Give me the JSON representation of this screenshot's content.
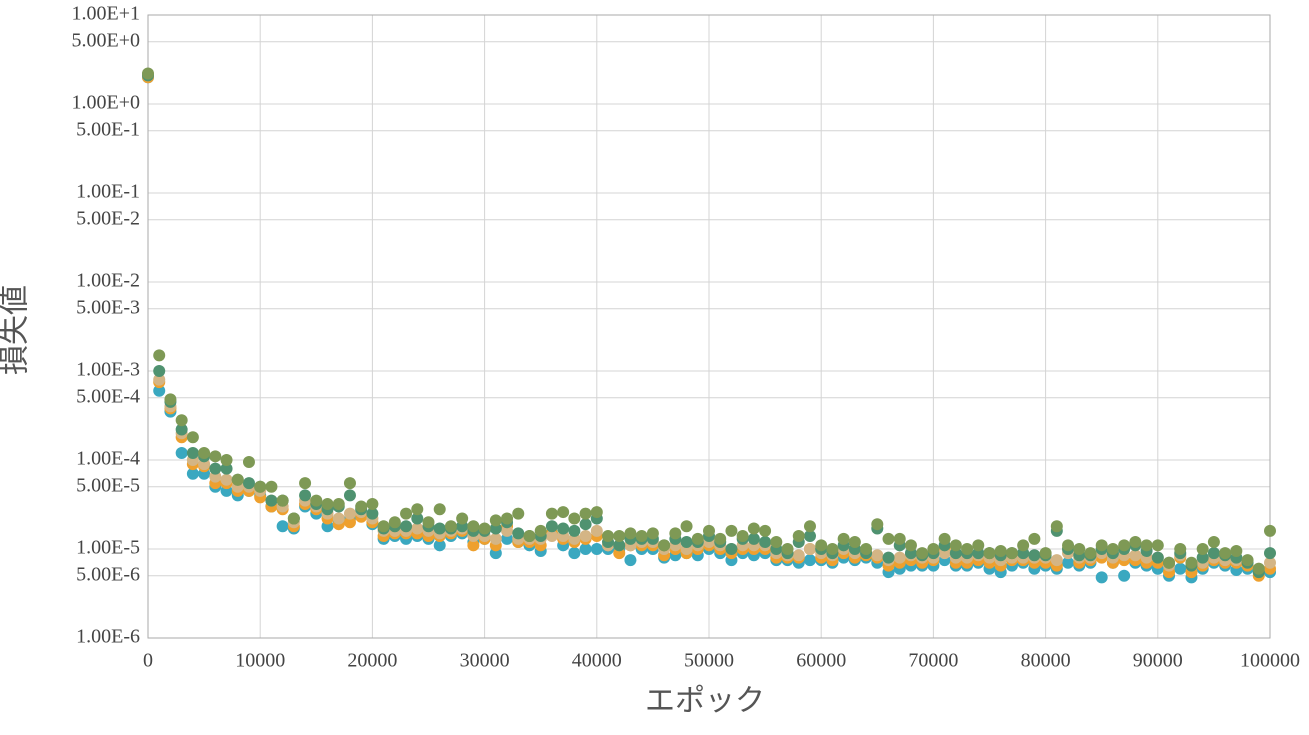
{
  "chart_data": {
    "type": "scatter",
    "x_label": "エポック",
    "y_label": "損失値",
    "log_y": true,
    "grid": true,
    "xlim": [
      0,
      100000
    ],
    "xticks": [
      0,
      10000,
      20000,
      30000,
      40000,
      50000,
      60000,
      70000,
      80000,
      90000,
      100000
    ],
    "ylim": [
      1e-06,
      10
    ],
    "yticks": [
      {
        "value": 10,
        "label": "1.00E+1"
      },
      {
        "value": 5,
        "label": "5.00E+0"
      },
      {
        "value": 1,
        "label": "1.00E+0"
      },
      {
        "value": 0.5,
        "label": "5.00E-1"
      },
      {
        "value": 0.1,
        "label": "1.00E-1"
      },
      {
        "value": 0.05,
        "label": "5.00E-2"
      },
      {
        "value": 0.01,
        "label": "1.00E-2"
      },
      {
        "value": 0.005,
        "label": "5.00E-3"
      },
      {
        "value": 0.001,
        "label": "1.00E-3"
      },
      {
        "value": 0.0005,
        "label": "5.00E-4"
      },
      {
        "value": 0.0001,
        "label": "1.00E-4"
      },
      {
        "value": 5e-05,
        "label": "5.00E-5"
      },
      {
        "value": 1e-05,
        "label": "1.00E-5"
      },
      {
        "value": 5e-06,
        "label": "5.00E-6"
      },
      {
        "value": 1e-06,
        "label": "1.00E-6"
      }
    ],
    "x": [
      0,
      1000,
      2000,
      3000,
      4000,
      5000,
      6000,
      7000,
      8000,
      9000,
      10000,
      11000,
      12000,
      13000,
      14000,
      15000,
      16000,
      17000,
      18000,
      19000,
      20000,
      21000,
      22000,
      23000,
      24000,
      25000,
      26000,
      27000,
      28000,
      29000,
      30000,
      31000,
      32000,
      33000,
      34000,
      35000,
      36000,
      37000,
      38000,
      39000,
      40000,
      41000,
      42000,
      43000,
      44000,
      45000,
      46000,
      47000,
      48000,
      49000,
      50000,
      51000,
      52000,
      53000,
      54000,
      55000,
      56000,
      57000,
      58000,
      59000,
      60000,
      61000,
      62000,
      63000,
      64000,
      65000,
      66000,
      67000,
      68000,
      69000,
      70000,
      71000,
      72000,
      73000,
      74000,
      75000,
      76000,
      77000,
      78000,
      79000,
      80000,
      81000,
      82000,
      83000,
      84000,
      85000,
      86000,
      87000,
      88000,
      89000,
      90000,
      91000,
      92000,
      93000,
      94000,
      95000,
      96000,
      97000,
      98000,
      99000,
      100000
    ],
    "series": [
      {
        "color": "#3aa8c0",
        "values": [
          2.0,
          0.0006,
          0.00035,
          0.00012,
          7e-05,
          7e-05,
          5e-05,
          4.5e-05,
          4e-05,
          4.5e-05,
          4e-05,
          3e-05,
          1.8e-05,
          1.7e-05,
          3e-05,
          2.5e-05,
          1.8e-05,
          2e-05,
          2.2e-05,
          2.5e-05,
          1.9e-05,
          1.3e-05,
          1.4e-05,
          1.3e-05,
          1.4e-05,
          1.3e-05,
          1.1e-05,
          1.4e-05,
          1.5e-05,
          1.2e-05,
          1.3e-05,
          9e-06,
          1.3e-05,
          1.2e-05,
          1.1e-05,
          9.5e-06,
          1.5e-05,
          1.1e-05,
          9e-06,
          1e-05,
          1e-05,
          1e-05,
          1e-05,
          7.5e-06,
          1e-05,
          1e-05,
          8e-06,
          8.5e-06,
          9e-06,
          8.5e-06,
          1e-05,
          9e-06,
          7.5e-06,
          9e-06,
          8.5e-06,
          9e-06,
          7.5e-06,
          7.5e-06,
          7e-06,
          7.5e-06,
          7.5e-06,
          7e-06,
          8e-06,
          7.5e-06,
          8e-06,
          7e-06,
          5.5e-06,
          6e-06,
          6.5e-06,
          6.5e-06,
          6.5e-06,
          7.5e-06,
          6.5e-06,
          6.5e-06,
          7e-06,
          6e-06,
          5.5e-06,
          6.5e-06,
          7e-06,
          6e-06,
          6.5e-06,
          6e-06,
          7e-06,
          6.5e-06,
          7e-06,
          4.8e-06,
          7e-06,
          5e-06,
          7e-06,
          6.5e-06,
          6e-06,
          5e-06,
          6e-06,
          4.8e-06,
          6e-06,
          7e-06,
          6.5e-06,
          5.8e-06,
          6e-06,
          5.5e-06,
          5.5e-06
        ]
      },
      {
        "color": "#eea02e",
        "values": [
          2.0,
          0.00075,
          0.00038,
          0.00018,
          9e-05,
          8.5e-05,
          5.5e-05,
          5.5e-05,
          4.5e-05,
          4.5e-05,
          3.8e-05,
          3e-05,
          2.8e-05,
          1.8e-05,
          3.2e-05,
          2.8e-05,
          2.2e-05,
          1.9e-05,
          2e-05,
          2.3e-05,
          2e-05,
          1.4e-05,
          1.5e-05,
          1.5e-05,
          1.5e-05,
          1.4e-05,
          1.4e-05,
          1.5e-05,
          1.6e-05,
          1.1e-05,
          1.3e-05,
          1.1e-05,
          1.8e-05,
          1.2e-05,
          1.2e-05,
          1.1e-05,
          1.5e-05,
          1.3e-05,
          1.2e-05,
          1.3e-05,
          1.4e-05,
          1.1e-05,
          9e-06,
          1.1e-05,
          1.1e-05,
          1.1e-05,
          8.5e-06,
          1e-05,
          9e-06,
          1e-05,
          1.1e-05,
          1e-05,
          9e-06,
          1e-05,
          1e-05,
          1e-05,
          8e-06,
          8e-06,
          8e-06,
          1e-05,
          8e-06,
          7.5e-06,
          9e-06,
          8e-06,
          8.5e-06,
          8e-06,
          6.5e-06,
          7e-06,
          7.5e-06,
          7e-06,
          7.5e-06,
          1e-05,
          7e-06,
          7e-06,
          7.5e-06,
          7e-06,
          6.5e-06,
          7.5e-06,
          7.5e-06,
          7e-06,
          7e-06,
          6.5e-06,
          1e-05,
          7e-06,
          7.5e-06,
          8e-06,
          7e-06,
          7.5e-06,
          7.5e-06,
          7e-06,
          7e-06,
          5.5e-06,
          8e-06,
          5.5e-06,
          6.5e-06,
          7.5e-06,
          7e-06,
          7e-06,
          6.5e-06,
          5e-06,
          6e-06
        ]
      },
      {
        "color": "#d4b585",
        "values": [
          2.1,
          0.0008,
          0.0004,
          0.0002,
          0.0001,
          9e-05,
          6.5e-05,
          6e-05,
          5e-05,
          5e-05,
          4.5e-05,
          3.5e-05,
          3e-05,
          2e-05,
          3.5e-05,
          3e-05,
          2.5e-05,
          2.2e-05,
          2.5e-05,
          2.6e-05,
          2.2e-05,
          1.6e-05,
          1.6e-05,
          1.6e-05,
          1.7e-05,
          1.6e-05,
          1.5e-05,
          1.6e-05,
          1.7e-05,
          1.4e-05,
          1.4e-05,
          1.3e-05,
          1.6e-05,
          1.3e-05,
          1.3e-05,
          1.3e-05,
          1.4e-05,
          1.4e-05,
          1.3e-05,
          1.4e-05,
          1.6e-05,
          1.1e-05,
          1.1e-05,
          1.1e-05,
          1.2e-05,
          1.2e-05,
          1e-05,
          1.1e-05,
          1e-05,
          1.1e-05,
          1.2e-05,
          1.1e-05,
          1e-05,
          1.1e-05,
          1.1e-05,
          1.1e-05,
          9e-06,
          8.5e-06,
          8.5e-06,
          1e-05,
          9e-06,
          8.5e-06,
          1e-05,
          9e-06,
          9e-06,
          8.5e-06,
          7.5e-06,
          8e-06,
          8.5e-06,
          8e-06,
          8e-06,
          9e-06,
          8e-06,
          8e-06,
          8.5e-06,
          8e-06,
          7.5e-06,
          8e-06,
          8e-06,
          8e-06,
          8e-06,
          7.5e-06,
          9e-06,
          8e-06,
          8e-06,
          9e-06,
          8e-06,
          8.5e-06,
          8.5e-06,
          8e-06,
          8e-06,
          6.5e-06,
          8.5e-06,
          6.5e-06,
          7e-06,
          8e-06,
          7.5e-06,
          7.5e-06,
          7e-06,
          6e-06,
          7e-06
        ]
      },
      {
        "color": "#4f9270",
        "values": [
          2.1,
          0.001,
          0.00045,
          0.00022,
          0.00012,
          0.00011,
          8e-05,
          8e-05,
          6e-05,
          5.5e-05,
          5e-05,
          3.5e-05,
          3.5e-05,
          2.2e-05,
          4e-05,
          3.2e-05,
          2.8e-05,
          3e-05,
          4e-05,
          2.8e-05,
          2.5e-05,
          1.7e-05,
          1.8e-05,
          1.8e-05,
          2.2e-05,
          1.8e-05,
          1.7e-05,
          1.7e-05,
          1.8e-05,
          1.6e-05,
          1.6e-05,
          1.7e-05,
          2e-05,
          1.5e-05,
          1.4e-05,
          1.4e-05,
          1.8e-05,
          1.7e-05,
          1.6e-05,
          1.9e-05,
          2.2e-05,
          1.2e-05,
          1.1e-05,
          1.3e-05,
          1.3e-05,
          1.3e-05,
          1.1e-05,
          1.3e-05,
          1.2e-05,
          1.2e-05,
          1.4e-05,
          1.2e-05,
          1e-05,
          1.3e-05,
          1.3e-05,
          1.2e-05,
          1e-05,
          9e-06,
          1.2e-05,
          1.4e-05,
          1e-05,
          9e-06,
          1.1e-05,
          1e-05,
          9e-06,
          1.7e-05,
          8e-06,
          1.1e-05,
          9e-06,
          8.5e-06,
          9e-06,
          1.1e-05,
          9e-06,
          9e-06,
          9e-06,
          9e-06,
          8.5e-06,
          9e-06,
          9e-06,
          8.5e-06,
          8.5e-06,
          1.6e-05,
          1e-05,
          8.5e-06,
          8.5e-06,
          1e-05,
          9e-06,
          1e-05,
          1.1e-05,
          9.5e-06,
          8e-06,
          7e-06,
          9e-06,
          6.5e-06,
          8e-06,
          9e-06,
          8.5e-06,
          8e-06,
          7e-06,
          5.5e-06,
          9e-06
        ]
      },
      {
        "color": "#7e9955",
        "values": [
          2.2,
          0.0015,
          0.00048,
          0.00028,
          0.00018,
          0.00012,
          0.00011,
          0.0001,
          6e-05,
          9.5e-05,
          5e-05,
          5e-05,
          3.5e-05,
          2.2e-05,
          5.5e-05,
          3.5e-05,
          3.2e-05,
          3.2e-05,
          5.5e-05,
          3e-05,
          3.2e-05,
          1.8e-05,
          2e-05,
          2.5e-05,
          2.8e-05,
          2e-05,
          2.8e-05,
          1.8e-05,
          2.2e-05,
          1.8e-05,
          1.7e-05,
          2.1e-05,
          2.2e-05,
          2.5e-05,
          1.4e-05,
          1.6e-05,
          2.5e-05,
          2.6e-05,
          2.2e-05,
          2.5e-05,
          2.6e-05,
          1.4e-05,
          1.4e-05,
          1.5e-05,
          1.4e-05,
          1.5e-05,
          1.1e-05,
          1.5e-05,
          1.8e-05,
          1.3e-05,
          1.6e-05,
          1.3e-05,
          1.6e-05,
          1.4e-05,
          1.7e-05,
          1.6e-05,
          1.2e-05,
          1e-05,
          1.4e-05,
          1.8e-05,
          1.1e-05,
          1e-05,
          1.3e-05,
          1.2e-05,
          1e-05,
          1.9e-05,
          1.3e-05,
          1.3e-05,
          1.1e-05,
          9e-06,
          1e-05,
          1.3e-05,
          1.1e-05,
          1e-05,
          1.1e-05,
          9e-06,
          9.5e-06,
          9e-06,
          1.1e-05,
          1.3e-05,
          9e-06,
          1.8e-05,
          1.1e-05,
          1e-05,
          9e-06,
          1.1e-05,
          1e-05,
          1.1e-05,
          1.2e-05,
          1.1e-05,
          1.1e-05,
          7e-06,
          1e-05,
          7e-06,
          1e-05,
          1.2e-05,
          9e-06,
          9.5e-06,
          7.5e-06,
          6e-06,
          1.6e-05
        ]
      }
    ]
  }
}
